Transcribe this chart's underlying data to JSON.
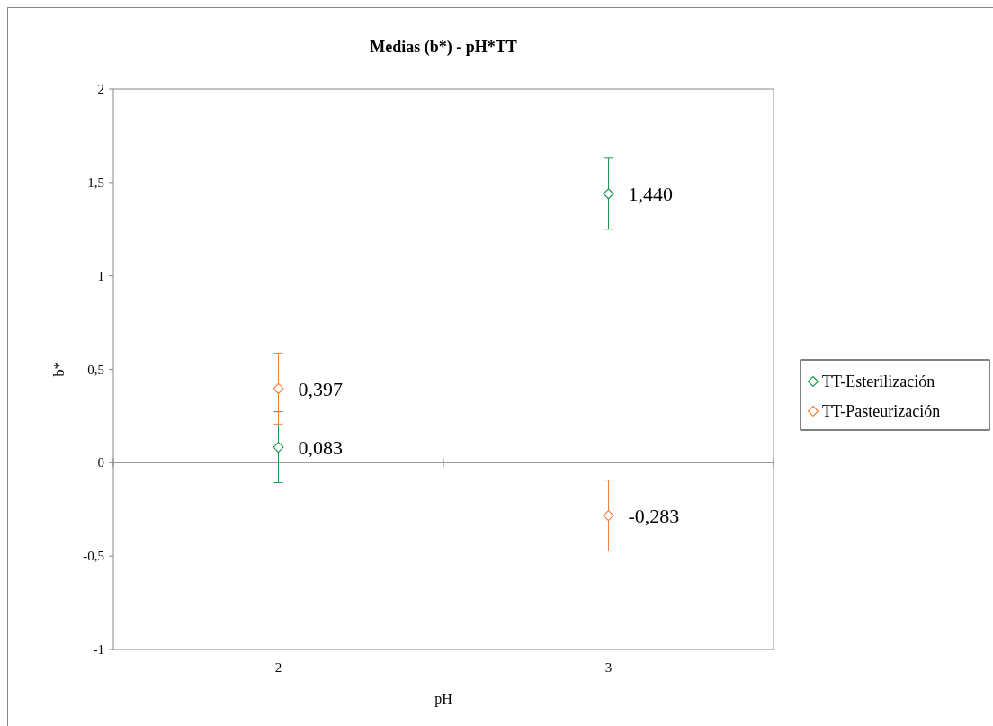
{
  "chart_data": {
    "type": "scatter",
    "title": "Medias (b*) - pH*TT",
    "xlabel": "pH",
    "ylabel": "b*",
    "categories": [
      "2",
      "3"
    ],
    "series": [
      {
        "name": "TT-Esterilización",
        "color": "#1e9a50",
        "values": [
          0.083,
          1.44
        ],
        "errors": [
          0.19,
          0.19
        ],
        "value_labels": [
          "0,083",
          "1,440"
        ]
      },
      {
        "name": "TT-Pasteurización",
        "color": "#f0813c",
        "values": [
          0.397,
          -0.283
        ],
        "errors": [
          0.19,
          0.19
        ],
        "value_labels": [
          "0,397",
          "-0,283"
        ]
      }
    ],
    "ylim": [
      -1,
      2
    ],
    "yticks": [
      {
        "value": -1,
        "label": "-1"
      },
      {
        "value": -0.5,
        "label": "-0,5"
      },
      {
        "value": 0,
        "label": "0"
      },
      {
        "value": 0.5,
        "label": "0,5"
      },
      {
        "value": 1,
        "label": "1"
      },
      {
        "value": 1.5,
        "label": "1,5"
      },
      {
        "value": 2,
        "label": "2"
      }
    ],
    "marker": "diamond",
    "legend": "right"
  }
}
